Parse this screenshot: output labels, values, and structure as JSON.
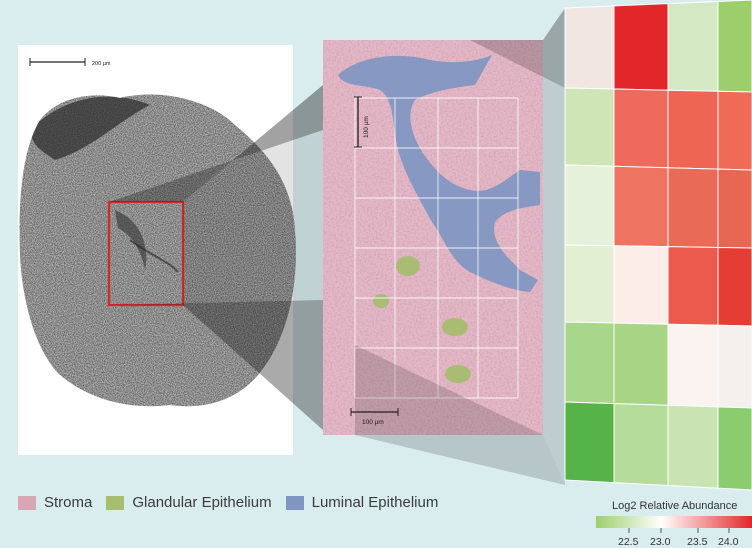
{
  "micrograph": {
    "scalebar_label": "200 µm"
  },
  "segmentation": {
    "scalebar_vertical_label": "100 µm",
    "scalebar_horizontal_label": "100 µm"
  },
  "legend": [
    {
      "label": "Stroma",
      "color": "#d7a7b5"
    },
    {
      "label": "Glandular Epithelium",
      "color": "#a7bd6f"
    },
    {
      "label": "Luminal Epithelium",
      "color": "#7f96c2"
    }
  ],
  "color_scale": {
    "title": "Log2 Relative Abundance",
    "ticks": [
      "22.5",
      "23.0",
      "23.5",
      "24.0"
    ],
    "low_color": "#5fb84a",
    "mid_color": "#ffffff",
    "high_color": "#e3262a"
  },
  "colors": {
    "background": "#d9ecee",
    "roi_box": "#d62828"
  }
}
